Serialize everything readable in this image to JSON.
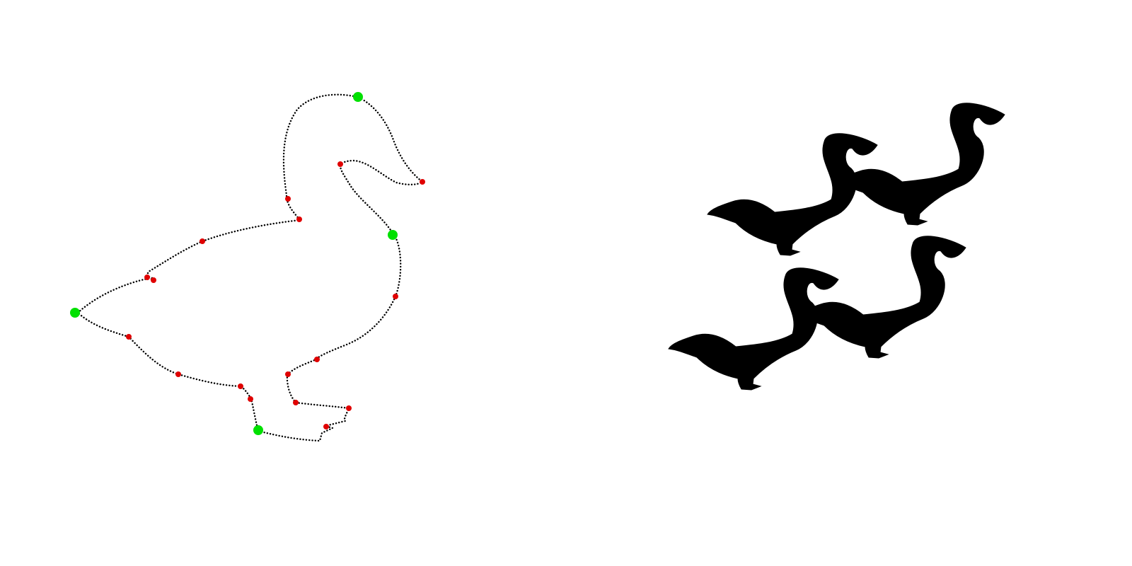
{
  "figure": {
    "background_color": "#ffffff",
    "outline": {
      "shape": "duck-outline",
      "stroke_style": "dotted",
      "stroke_color": "#000000"
    },
    "markers": {
      "green": {
        "color": "#00e000",
        "count": 4,
        "role": "primary-control-points"
      },
      "red": {
        "color": "#e00000",
        "count": 17,
        "role": "secondary-control-points"
      }
    },
    "silhouettes": {
      "shape": "duck-silhouette",
      "fill_color": "#000000",
      "count": 4
    }
  }
}
